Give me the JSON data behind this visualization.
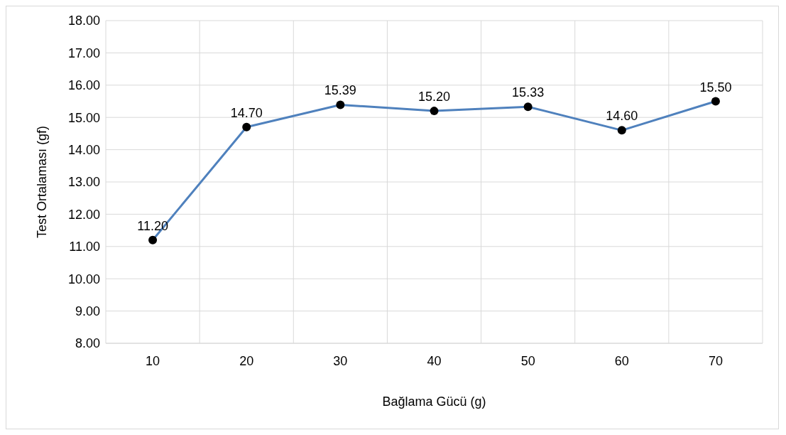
{
  "chart_data": {
    "type": "line",
    "xlabel": "Bağlama Gücü (g)",
    "ylabel": "Test Ortalaması (gf)",
    "categories": [
      "10",
      "20",
      "30",
      "40",
      "50",
      "60",
      "70"
    ],
    "series": [
      {
        "color": "#4f81bd",
        "values": [
          11.2,
          14.7,
          15.39,
          15.2,
          15.33,
          14.6,
          15.5
        ],
        "value_labels": [
          "11.20",
          "14.70",
          "15.39",
          "15.20",
          "15.33",
          "14.60",
          "15.50"
        ]
      }
    ],
    "ylim": [
      8,
      18
    ],
    "yticks": [
      {
        "value": 8,
        "label": "8.00"
      },
      {
        "value": 9,
        "label": "9.00"
      },
      {
        "value": 10,
        "label": "10.00"
      },
      {
        "value": 11,
        "label": "11.00"
      },
      {
        "value": 12,
        "label": "12.00"
      },
      {
        "value": 13,
        "label": "13.00"
      },
      {
        "value": 14,
        "label": "14.00"
      },
      {
        "value": 15,
        "label": "15.00"
      },
      {
        "value": 16,
        "label": "16.00"
      },
      {
        "value": 17,
        "label": "17.00"
      },
      {
        "value": 18,
        "label": "18.00"
      }
    ],
    "grid": true,
    "marker": "circle",
    "line_style": "solid",
    "legend": false
  }
}
